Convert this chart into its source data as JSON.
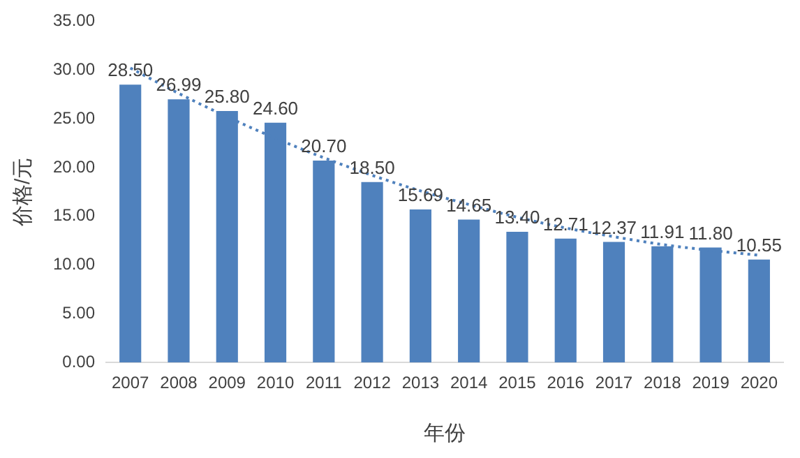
{
  "chart_data": {
    "type": "bar",
    "xlabel": "年份",
    "ylabel": "价格/元",
    "categories": [
      "2007",
      "2008",
      "2009",
      "2010",
      "2011",
      "2012",
      "2013",
      "2014",
      "2015",
      "2016",
      "2017",
      "2018",
      "2019",
      "2020"
    ],
    "series": [
      {
        "color": "#4f81bd",
        "values": [
          28.5,
          26.99,
          25.8,
          24.6,
          20.7,
          18.5,
          15.69,
          14.65,
          13.4,
          12.71,
          12.37,
          11.91,
          11.8,
          10.55
        ],
        "value_labels": [
          "28.50",
          "26.99",
          "25.80",
          "24.60",
          "20.70",
          "18.50",
          "15.69",
          "14.65",
          "13.40",
          "12.71",
          "12.37",
          "11.91",
          "11.80",
          "10.55"
        ]
      },
      {
        "type": "line",
        "color": "#4f81bd",
        "line_style": "dotted",
        "marker": "none",
        "values": [
          30.2,
          27.6,
          25.2,
          23.0,
          21.0,
          19.2,
          17.6,
          16.2,
          14.9,
          13.8,
          12.9,
          12.1,
          11.5,
          11.0
        ]
      }
    ],
    "ylim": [
      0,
      35
    ],
    "yticks": [
      {
        "value": 0,
        "label": "0.00"
      },
      {
        "value": 5,
        "label": "5.00"
      },
      {
        "value": 10,
        "label": "10.00"
      },
      {
        "value": 15,
        "label": "15.00"
      },
      {
        "value": 20,
        "label": "20.00"
      },
      {
        "value": 25,
        "label": "25.00"
      },
      {
        "value": 30,
        "label": "30.00"
      },
      {
        "value": 35,
        "label": "35.00"
      }
    ],
    "grid": false,
    "legend": false
  }
}
